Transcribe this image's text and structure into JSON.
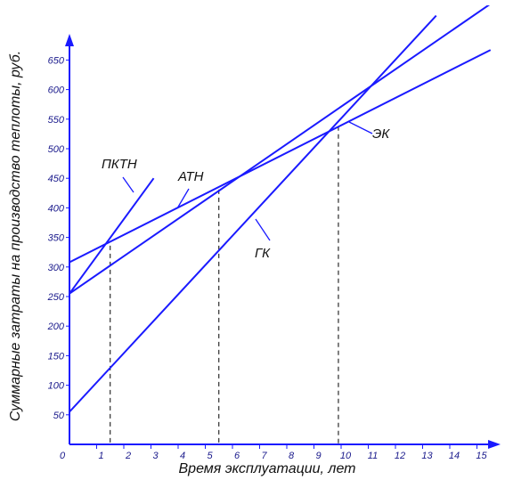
{
  "chart_data": {
    "type": "line",
    "xlabel": "Время эксплуатации, лет",
    "ylabel": "Суммарные затраты на производство теплоты, руб.",
    "xlim": [
      0,
      15.5
    ],
    "ylim": [
      0,
      680
    ],
    "x_ticks": [
      "0",
      "1",
      "2",
      "3",
      "4",
      "5",
      "6",
      "7",
      "8",
      "9",
      "10",
      "11",
      "12",
      "13",
      "14",
      "15"
    ],
    "y_ticks": [
      "50",
      "100",
      "150",
      "200",
      "250",
      "300",
      "350",
      "400",
      "450",
      "500",
      "550",
      "600",
      "650"
    ],
    "grid": false,
    "series": [
      {
        "name": "ПКТН",
        "x": [
          0,
          3.1
        ],
        "y": [
          255,
          450
        ]
      },
      {
        "name": "АТН",
        "x": [
          0,
          15.5
        ],
        "y": [
          255,
          745
        ]
      },
      {
        "name": "ЭК",
        "x": [
          0,
          15.5
        ],
        "y": [
          308,
          667
        ]
      },
      {
        "name": "ГК",
        "x": [
          0,
          13.5
        ],
        "y": [
          55,
          725
        ]
      }
    ],
    "annotations": [
      {
        "x": 1.5,
        "y": 336
      },
      {
        "x": 5.5,
        "y": 431
      },
      {
        "x": 9.9,
        "y": 538
      }
    ],
    "colors": {
      "lines": "#1a1aff",
      "axes": "#1a1aff",
      "ticks": "#1a1a8c"
    }
  }
}
